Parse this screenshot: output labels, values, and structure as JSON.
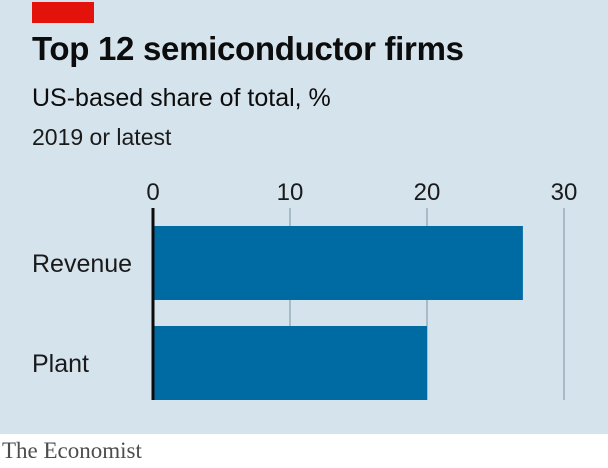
{
  "header": {
    "title": "Top 12 semiconductor firms",
    "subtitle": "US-based share of total, %",
    "note": "2019 or latest"
  },
  "source": "The Economist",
  "colors": {
    "background": "#d5e3ec",
    "bar": "#006ba2",
    "accent": "#e3120b",
    "grid": "#a8bcc8"
  },
  "chart_data": {
    "type": "bar",
    "orientation": "horizontal",
    "categories": [
      "Revenue",
      "Plant"
    ],
    "values": [
      27,
      20
    ],
    "xlim": [
      0,
      30
    ],
    "xticks": [
      0,
      10,
      20,
      30
    ],
    "title": "Top 12 semiconductor firms",
    "subtitle": "US-based share of total, %",
    "grid": true,
    "legend": "none"
  }
}
